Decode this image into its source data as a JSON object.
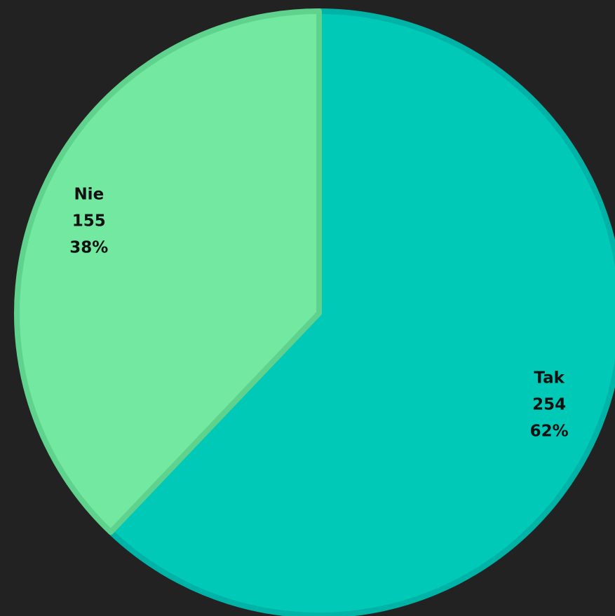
{
  "chart_data": {
    "type": "pie",
    "start_angle": 0,
    "direction": "clockwise",
    "categories": [
      "Tak",
      "Nie"
    ],
    "values": [
      254,
      155
    ],
    "percent_labels": [
      "62%",
      "38%"
    ],
    "colors": [
      "#00c9b7",
      "#72e8a0"
    ],
    "edge_colors": [
      "#00b3a7",
      "#5fd38d"
    ]
  }
}
